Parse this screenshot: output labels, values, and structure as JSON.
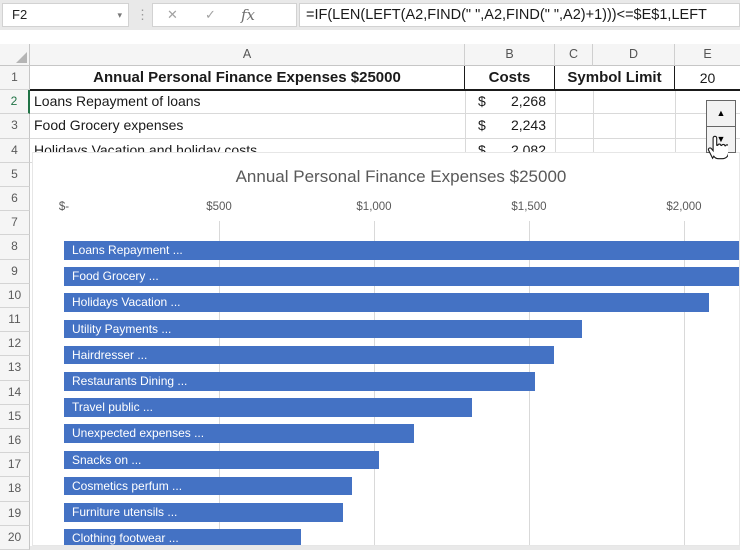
{
  "formula_bar": {
    "name_box": "F2",
    "name_box_caret": "▾",
    "drag_dots": "⋮",
    "cancel_label": "✕",
    "enter_label": "✓",
    "fx_label": "fx",
    "formula": "=IF(LEN(LEFT(A2,FIND(\" \",A2,FIND(\" \",A2)+1)))<=$E$1,LEFT"
  },
  "grid": {
    "column_headers": [
      "A",
      "B",
      "C",
      "D",
      "E"
    ],
    "row_numbers": [
      "1",
      "2",
      "3",
      "4",
      "5",
      "6",
      "7",
      "8",
      "9",
      "10",
      "11",
      "12",
      "13",
      "14",
      "15",
      "16",
      "17",
      "18",
      "19",
      "20"
    ],
    "active_row": "2",
    "header_row": {
      "a": "Annual Personal Finance Expenses $25000",
      "b": "Costs",
      "cd": "Symbol Limit",
      "e": "20"
    },
    "data_rows": [
      {
        "row": "2",
        "label": "Loans Repayment of loans",
        "currency": "$",
        "value": "2,268"
      },
      {
        "row": "3",
        "label": "Food Grocery expenses",
        "currency": "$",
        "value": "2,243"
      },
      {
        "row": "4",
        "label": "Holidays Vacation and holiday costs",
        "currency": "$",
        "value": "2,082"
      }
    ]
  },
  "spin_button": {
    "up_glyph": "▲",
    "down_glyph": "▼"
  },
  "chart_data": {
    "type": "bar",
    "orientation": "horizontal",
    "title": "Annual Personal Finance Expenses $25000",
    "categories": [
      "Loans Repayment ...",
      "Food Grocery ...",
      "Holidays Vacation ...",
      "Utility Payments ...",
      "Hairdresser ...",
      "Restaurants Dining ...",
      "Travel public ...",
      "Unexpected expenses ...",
      "Snacks on ...",
      "Cosmetics perfum ...",
      "Furniture utensils ...",
      "Clothing footwear ..."
    ],
    "values": [
      2268,
      2243,
      2082,
      1670,
      1580,
      1520,
      1315,
      1130,
      1015,
      930,
      900,
      765
    ],
    "x_tick_labels": [
      "$-",
      "$500",
      "$1,000",
      "$1,500",
      "$2,000"
    ],
    "x_tick_values": [
      0,
      500,
      1000,
      1500,
      2000
    ],
    "xlim": [
      0,
      2280
    ],
    "grid": true,
    "legend": "none",
    "data_labels": "category names inside bar, truncated to Symbol Limit",
    "bar_color": "#4472C4",
    "data_label_color": "#FFFFFF",
    "title_color": "#595959",
    "axis_label_color": "#595959",
    "gridline_color": "#D9D9D9"
  },
  "colors": {
    "accent_green": "#217346",
    "table_border": "#1a1a1a",
    "sheet_gridline": "#D9D9D9"
  }
}
